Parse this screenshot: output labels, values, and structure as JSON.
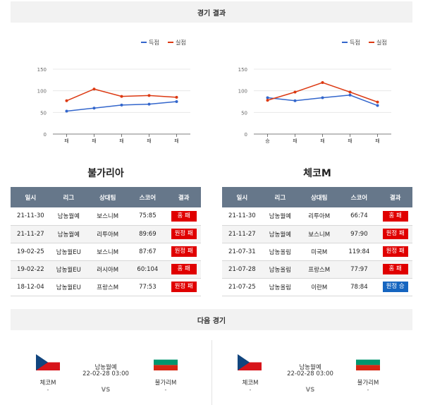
{
  "header": {
    "results_title": "경기 결과",
    "next_title": "다음 경기"
  },
  "legend": {
    "score": "득점",
    "conceded": "실점"
  },
  "colors": {
    "score": "#3366cc",
    "conceded": "#dc3912",
    "home": "#e00000",
    "away": "#e00000",
    "win": "#1565c0",
    "header": "#66778a"
  },
  "chart_data": [
    {
      "type": "line",
      "categories": [
        "패",
        "패",
        "패",
        "패",
        "패"
      ],
      "series": [
        {
          "name": "득점",
          "values": [
            53,
            60,
            67,
            69,
            75
          ]
        },
        {
          "name": "실점",
          "values": [
            77,
            104,
            87,
            89,
            85
          ]
        }
      ],
      "ylim": [
        0,
        150
      ],
      "yticks": [
        0,
        50,
        100,
        150
      ],
      "legend": "top-right",
      "grid": true
    },
    {
      "type": "line",
      "categories": [
        "승",
        "패",
        "패",
        "패",
        "패"
      ],
      "series": [
        {
          "name": "득점",
          "values": [
            84,
            77,
            84,
            90,
            66
          ]
        },
        {
          "name": "실점",
          "values": [
            78,
            97,
            119,
            97,
            74
          ]
        }
      ],
      "ylim": [
        0,
        150
      ],
      "yticks": [
        0,
        50,
        100,
        150
      ],
      "legend": "top-right",
      "grid": true
    }
  ],
  "teams": [
    {
      "name": "불가리아",
      "columns": [
        "일시",
        "리그",
        "상대팀",
        "스코어",
        "결과"
      ],
      "rows": [
        {
          "date": "21-11-30",
          "league": "남농월예",
          "opponent": "보스니M",
          "score": "75:85",
          "result": "홈 패",
          "type": "home"
        },
        {
          "date": "21-11-27",
          "league": "남농월예",
          "opponent": "리투아M",
          "score": "89:69",
          "result": "원정 패",
          "type": "away"
        },
        {
          "date": "19-02-25",
          "league": "남농월EU",
          "opponent": "보스니M",
          "score": "87:67",
          "result": "원정 패",
          "type": "away"
        },
        {
          "date": "19-02-22",
          "league": "남농월EU",
          "opponent": "러시아M",
          "score": "60:104",
          "result": "홈 패",
          "type": "home"
        },
        {
          "date": "18-12-04",
          "league": "남농월EU",
          "opponent": "프랑스M",
          "score": "77:53",
          "result": "원정 패",
          "type": "away"
        }
      ]
    },
    {
      "name": "체코M",
      "columns": [
        "일시",
        "리그",
        "상대팀",
        "스코어",
        "결과"
      ],
      "rows": [
        {
          "date": "21-11-30",
          "league": "남농월예",
          "opponent": "리투아M",
          "score": "66:74",
          "result": "홈 패",
          "type": "home"
        },
        {
          "date": "21-11-27",
          "league": "남농월예",
          "opponent": "보스니M",
          "score": "97:90",
          "result": "원정 패",
          "type": "away"
        },
        {
          "date": "21-07-31",
          "league": "남농올림",
          "opponent": "미국M",
          "score": "119:84",
          "result": "원정 패",
          "type": "away"
        },
        {
          "date": "21-07-28",
          "league": "남농올림",
          "opponent": "프랑스M",
          "score": "77:97",
          "result": "홈 패",
          "type": "home"
        },
        {
          "date": "21-07-25",
          "league": "남농올림",
          "opponent": "이란M",
          "score": "78:84",
          "result": "원정 승",
          "type": "win"
        }
      ]
    }
  ],
  "next_matches": [
    {
      "league": "남농월예",
      "time": "22-02-28 03:00",
      "vs": "VS",
      "home": {
        "name": "체코M",
        "sub": "-"
      },
      "away": {
        "name": "불가리M",
        "sub": "-"
      }
    },
    {
      "league": "남농월예",
      "time": "22-02-28 03:00",
      "vs": "VS",
      "home": {
        "name": "체코M",
        "sub": "-"
      },
      "away": {
        "name": "불가리M",
        "sub": "-"
      }
    }
  ]
}
